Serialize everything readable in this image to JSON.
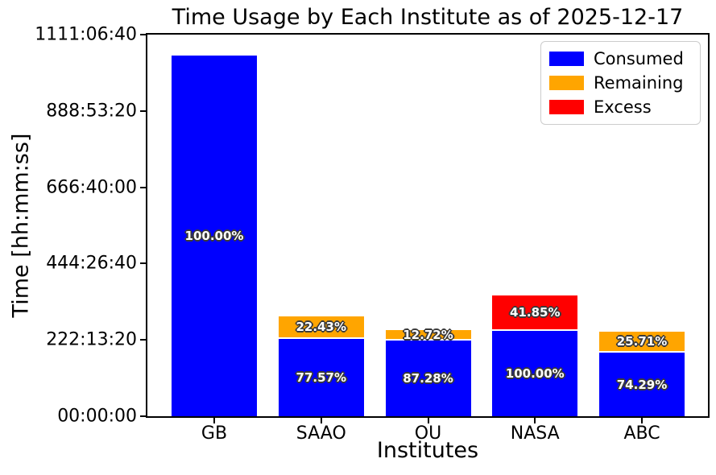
{
  "chart_data": {
    "type": "bar",
    "stacked": true,
    "title": "Time Usage by Each Institute as of 2025-12-17",
    "xlabel": "Institutes",
    "ylabel": "Time [hh:mm:ss]",
    "categories": [
      "GB",
      "SAAO",
      "OU",
      "NASA",
      "ABC"
    ],
    "ytick_labels": [
      "00:00:00",
      "222:13:20",
      "444:26:40",
      "666:40:00",
      "888:53:20",
      "1111:06:40"
    ],
    "ylim_hours": [
      0,
      1111.1111
    ],
    "grid": false,
    "legend_position": "upper right",
    "bar_label_color": "#ffffff",
    "axis_color": "#000000",
    "background_color": "#ffffff",
    "series": [
      {
        "name": "Consumed",
        "color": "#0000ff",
        "values_hours_est": [
          1050,
          225,
          220,
          248,
          185
        ],
        "bar_labels": [
          "100.00%",
          "77.57%",
          "87.28%",
          "100.00%",
          "74.29%"
        ]
      },
      {
        "name": "Remaining",
        "color": "#ffa500",
        "values_hours_est": [
          0,
          65,
          31,
          0,
          61
        ],
        "bar_labels": [
          "",
          "22.43%",
          "12.72%",
          "",
          "25.71%"
        ]
      },
      {
        "name": "Excess",
        "color": "#ff0000",
        "values_hours_est": [
          0,
          0,
          0,
          104,
          0
        ],
        "bar_labels": [
          "",
          "",
          "",
          "41.85%",
          ""
        ]
      }
    ]
  }
}
